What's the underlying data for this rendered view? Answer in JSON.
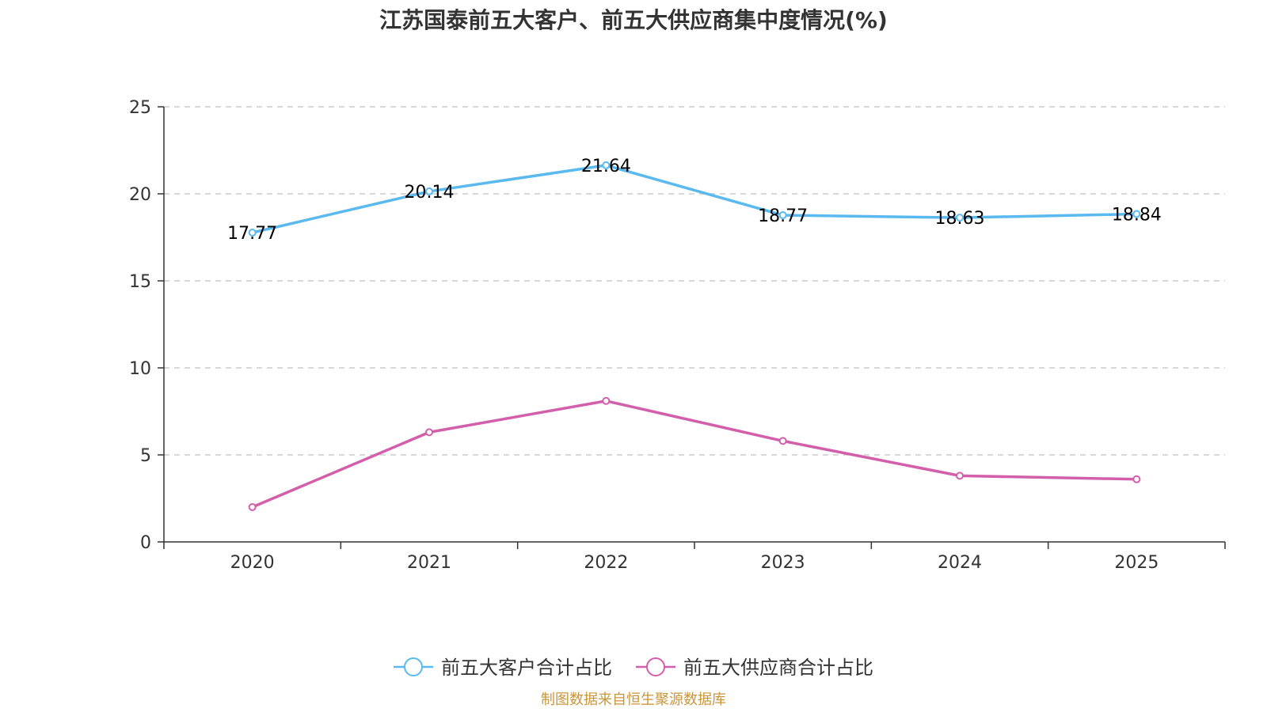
{
  "chart_data": {
    "type": "line",
    "title": "江苏国泰前五大客户、前五大供应商集中度情况(%)",
    "categories": [
      "2020",
      "2021",
      "2022",
      "2023",
      "2024",
      "2025"
    ],
    "ylim": [
      0,
      25
    ],
    "yticks": [
      0,
      5,
      10,
      15,
      20,
      25
    ],
    "grid": true,
    "legend_position": "bottom-center",
    "series": [
      {
        "name": "前五大客户合计占比",
        "values": [
          17.77,
          20.14,
          21.64,
          18.77,
          18.63,
          18.84
        ],
        "labels": [
          "17.77",
          "20.14",
          "21.64",
          "18.77",
          "18.63",
          "18.84"
        ],
        "color": "#5ab9ee",
        "show_labels": true
      },
      {
        "name": "前五大供应商合计占比",
        "values": [
          2.0,
          6.3,
          8.1,
          5.8,
          3.8,
          3.6
        ],
        "color": "#d35fab",
        "show_labels": false
      }
    ],
    "source": "制图数据来自恒生聚源数据库"
  }
}
